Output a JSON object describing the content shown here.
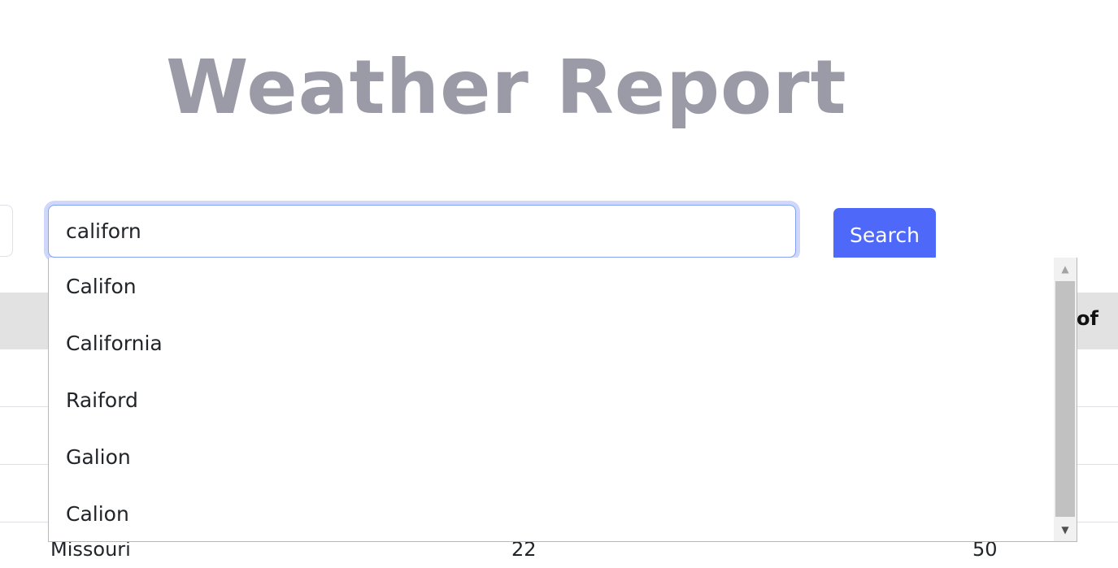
{
  "title": "Weather Report",
  "search": {
    "value": "californ",
    "button_label": "Search"
  },
  "autocomplete": {
    "items": [
      "Califon",
      "California",
      "Raiford",
      "Galion",
      "Calion"
    ]
  },
  "table": {
    "header_partial": "y of",
    "visible_row": {
      "col1": "Missouri",
      "col2": "22",
      "col3": "50"
    }
  },
  "icons": {
    "scroll_up": "scroll-up-arrow-icon",
    "scroll_down": "scroll-down-arrow-icon"
  },
  "colors": {
    "title": "#9b9aa7",
    "button": "#4e68fa",
    "input_focus_ring": "#cfd8fb",
    "table_header": "#e2e2e2"
  }
}
